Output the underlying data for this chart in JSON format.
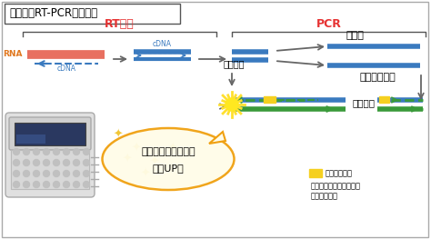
{
  "title": "リアルタRT-PCR法の原理",
  "rt_label": "RT反応",
  "pcr_label": "PCR",
  "rna_label": "RNA",
  "cdna_top": "cDNA",
  "cdna_bot": "cDNA",
  "netsuhennsei": "熱変性",
  "annealing": "アニーリング",
  "shinchou": "伸長反応",
  "keikoudetection": "蛍光検出",
  "keikouup_line1": "増えれば増えるほど",
  "keikouup_line2": "蛍光UP！",
  "probe_label": "蛍光プローブ",
  "probe_desc1": "伸長反応で分解されると",
  "probe_desc2": "蛍光を発する",
  "blue": "#3a7abf",
  "green": "#3a9a3a",
  "red": "#e05030",
  "orange": "#e07820",
  "gray": "#666666",
  "rt_red": "#e63232",
  "yellow": "#f5d020",
  "light_gray": "#cccccc"
}
